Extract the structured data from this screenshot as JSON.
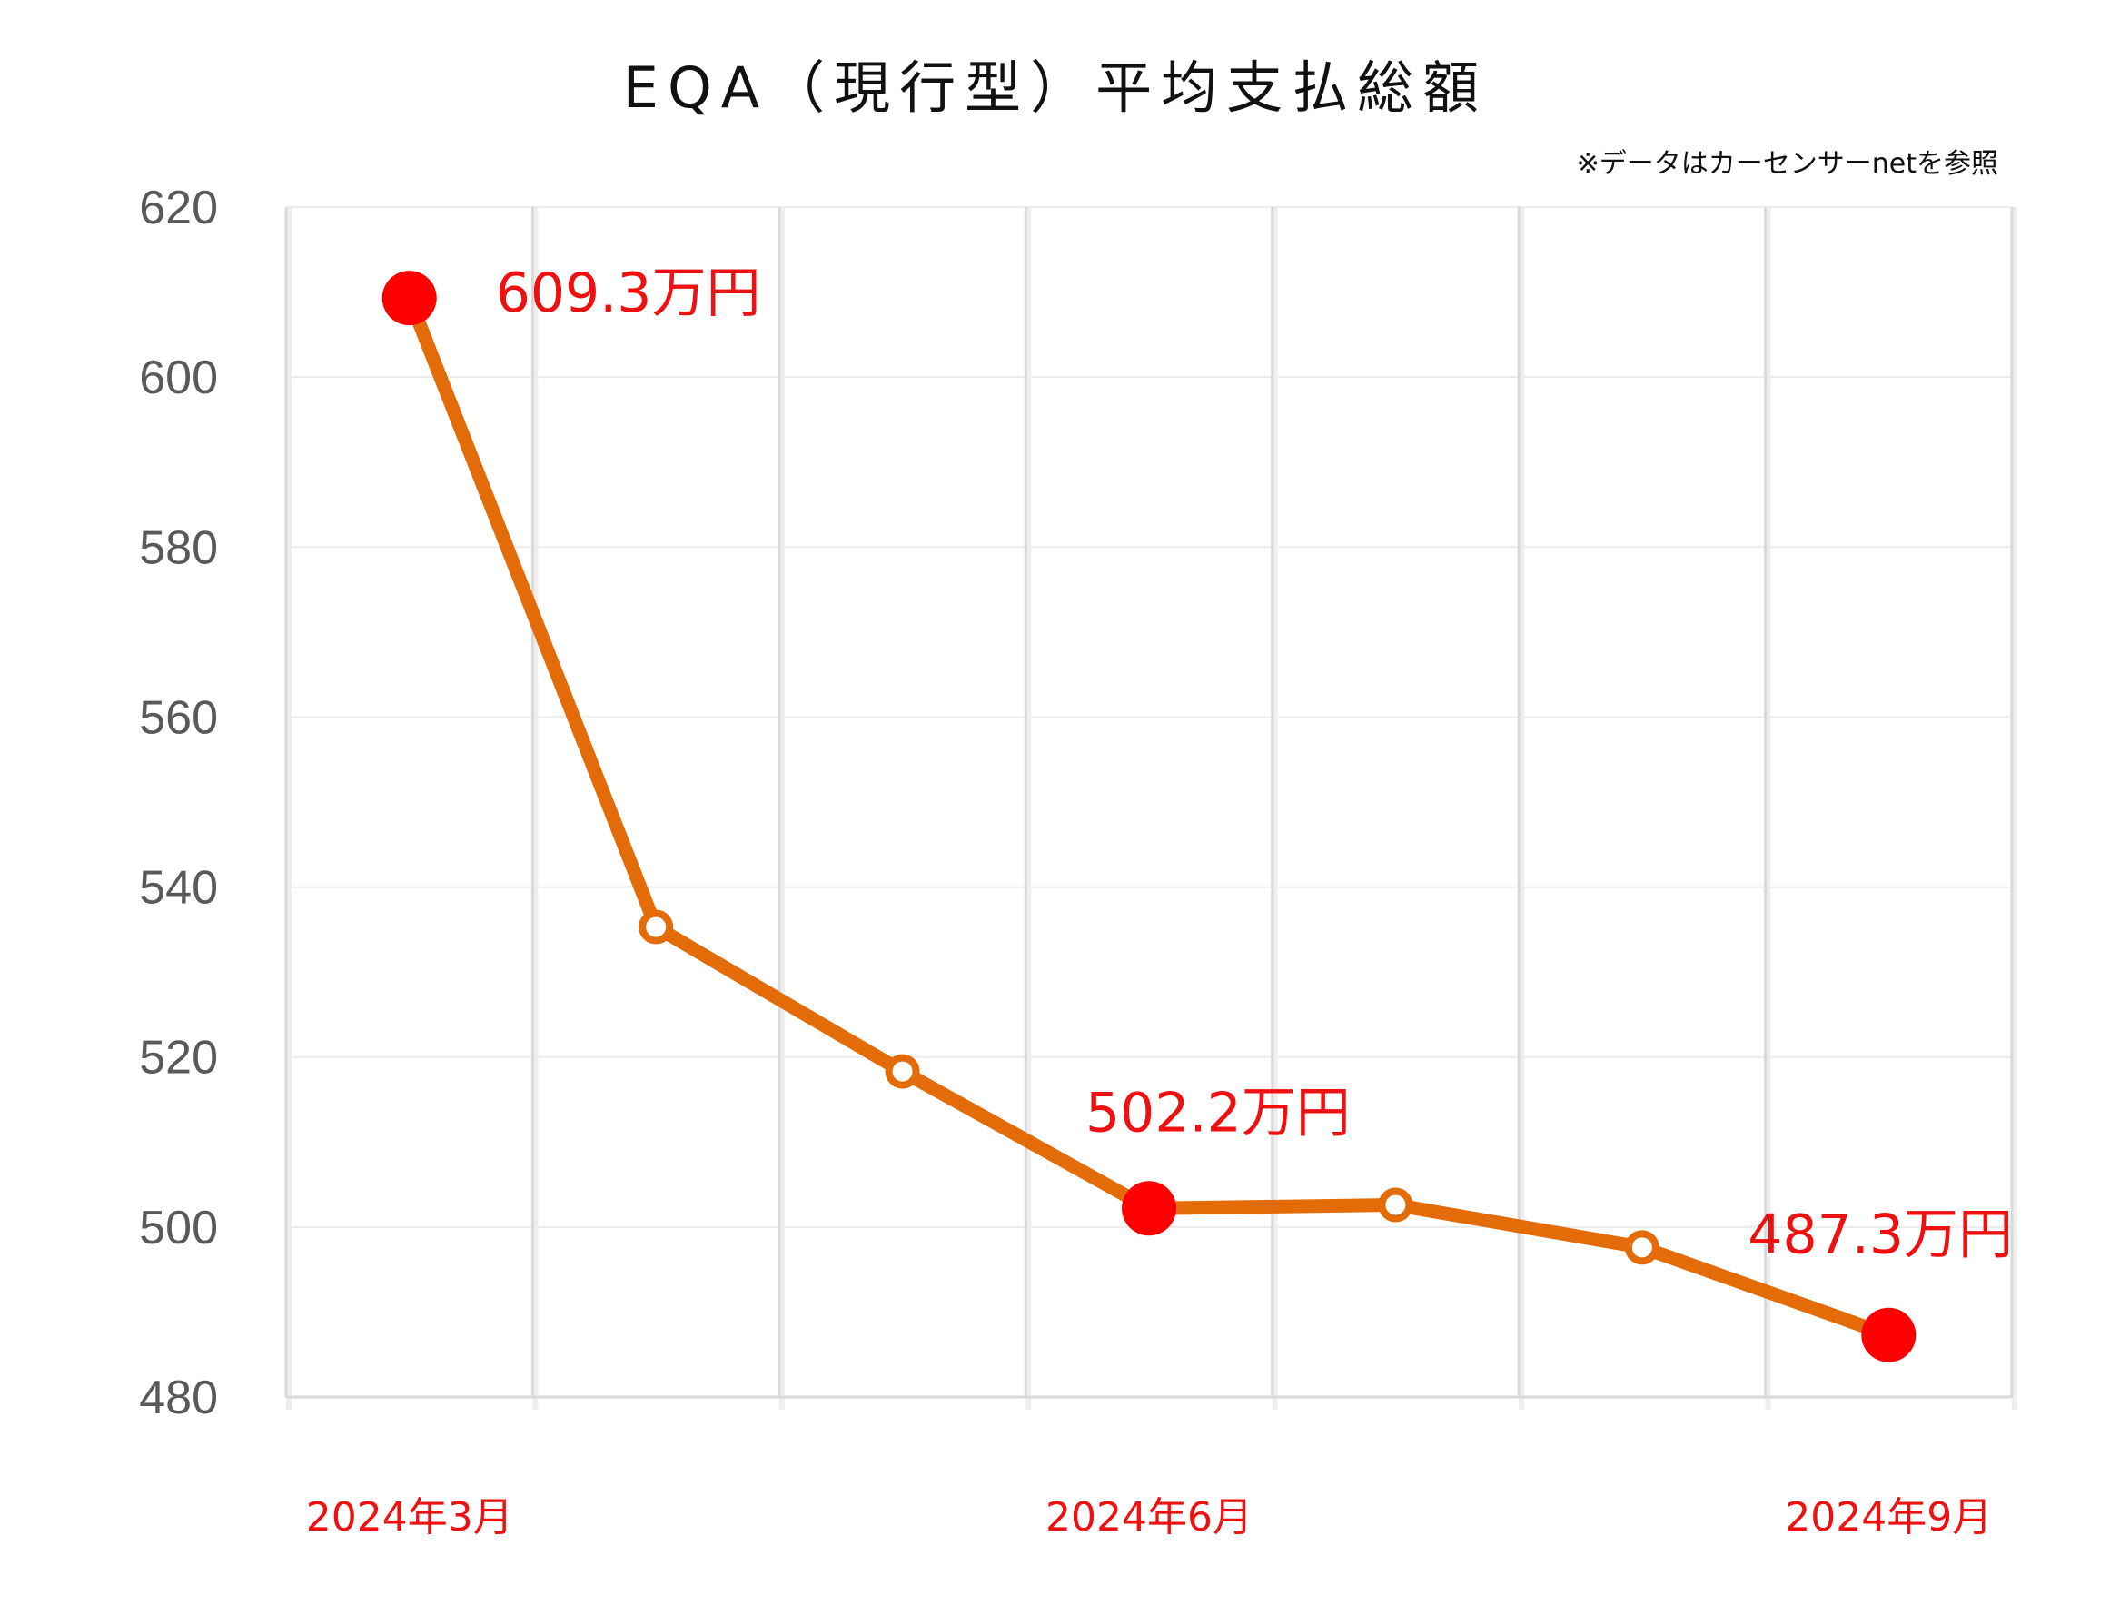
{
  "chart_data": {
    "type": "line",
    "title": "EQA（現行型）平均支払総額",
    "note": "※データはカーセンサーnetを参照",
    "xlabel": "",
    "ylabel": "",
    "ylim": [
      480,
      620
    ],
    "yticks": [
      620,
      600,
      580,
      560,
      540,
      520,
      500,
      480
    ],
    "point_count": 7,
    "x_tick_labels": [
      {
        "index": 0,
        "label": "2024年3月"
      },
      {
        "index": 3,
        "label": "2024年6月"
      },
      {
        "index": 6,
        "label": "2024年9月"
      }
    ],
    "series": [
      {
        "values": [
          609.3,
          535.3,
          518.3,
          502.2,
          502.6,
          497.6,
          487.3
        ],
        "highlight": [
          true,
          false,
          false,
          true,
          false,
          false,
          true
        ]
      }
    ],
    "data_labels": [
      {
        "index": 0,
        "text": "609.3万円"
      },
      {
        "index": 3,
        "text": "502.2万円"
      },
      {
        "index": 6,
        "text": "487.3万円"
      }
    ],
    "grid": {
      "horizontal": true,
      "vertical": true
    },
    "colors": {
      "line": "#e36c09",
      "highlight": "#ff0000",
      "label": "#ee1111",
      "grid": "#d9d9d9"
    }
  }
}
